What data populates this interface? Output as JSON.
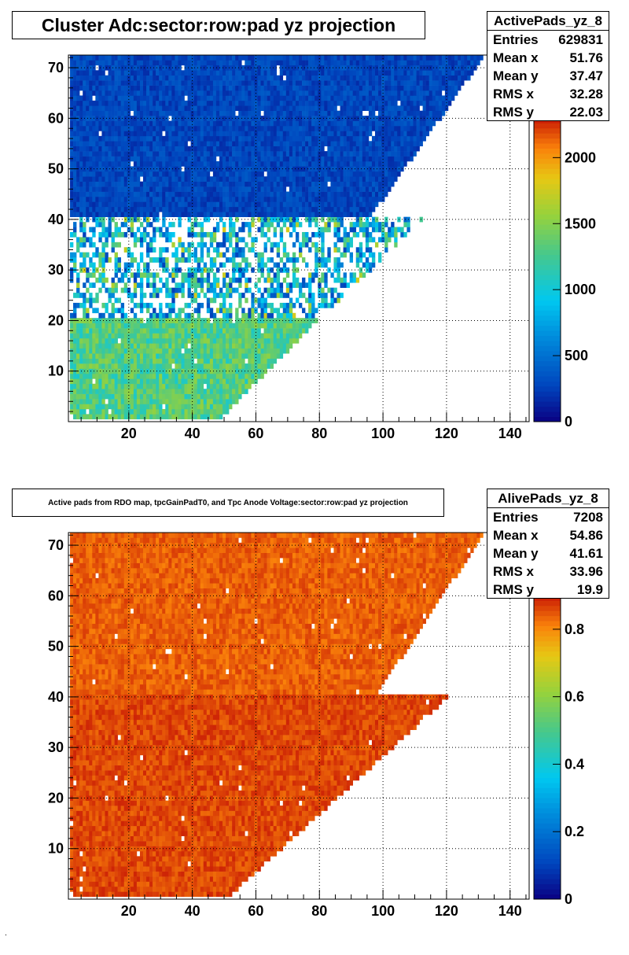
{
  "chart_data": [
    {
      "type": "heatmap",
      "title": "Cluster Adc:sector:row:pad yz projection",
      "xlabel": "",
      "ylabel": "",
      "xlim": [
        1,
        146
      ],
      "ylim": [
        0,
        72.5
      ],
      "x_ticks": [
        "20",
        "40",
        "60",
        "80",
        "100",
        "120",
        "140"
      ],
      "y_ticks": [
        "10",
        "20",
        "30",
        "40",
        "50",
        "60",
        "70"
      ],
      "colorbar": {
        "min": 0,
        "max": 2300,
        "ticks": [
          "0",
          "500",
          "1000",
          "1500",
          "2000"
        ]
      },
      "grid": true,
      "stats": {
        "name": "ActivePads_yz_8",
        "rows": [
          {
            "label": "Entries",
            "value": "629831"
          },
          {
            "label": "Mean x",
            "value": "51.76"
          },
          {
            "label": "Mean y",
            "value": "37.47"
          },
          {
            "label": "RMS x",
            "value": "32.28"
          },
          {
            "label": "RMS y",
            "value": "22.03"
          }
        ]
      },
      "regions": [
        {
          "rows": [
            41,
            72
          ],
          "pad_max_at_row40": 95,
          "pad_max_at_row72": 131,
          "value_mean": 280,
          "value_spread": 110
        },
        {
          "rows": [
            21,
            40
          ],
          "pad_max_at_row21": 81,
          "pad_max_at_row40": 112,
          "value_mean": 850,
          "value_spread": 600,
          "sparse": true
        },
        {
          "rows": [
            1,
            20
          ],
          "pad_max_at_row1": 49,
          "pad_max_at_row20": 79,
          "value_mean": 1300,
          "value_spread": 250
        }
      ]
    },
    {
      "type": "heatmap",
      "title": "Active pads from RDO map, tpcGainPadT0,  and Tpc Anode Voltage:sector:row:pad yz projection",
      "xlabel": "",
      "ylabel": "",
      "xlim": [
        1,
        146
      ],
      "ylim": [
        0,
        72.5
      ],
      "x_ticks": [
        "20",
        "40",
        "60",
        "80",
        "100",
        "120",
        "140"
      ],
      "y_ticks": [
        "10",
        "20",
        "30",
        "40",
        "50",
        "60",
        "70"
      ],
      "colorbar": {
        "min": 0,
        "max": 0.9,
        "ticks": [
          "0",
          "0.2",
          "0.4",
          "0.6",
          "0.8"
        ]
      },
      "grid": true,
      "stats": {
        "name": "AlivePads_yz_8",
        "rows": [
          {
            "label": "Entries",
            "value": "7208"
          },
          {
            "label": "Mean x",
            "value": "54.86"
          },
          {
            "label": "Mean y",
            "value": "41.61"
          },
          {
            "label": "RMS x",
            "value": "33.96"
          },
          {
            "label": "RMS y",
            "value": "19.9"
          }
        ]
      },
      "regions": [
        {
          "rows": [
            41,
            72
          ],
          "pad_max_at_row40": 97,
          "pad_max_at_row72": 131,
          "value_mean": 0.84,
          "value_spread": 0.03
        },
        {
          "rows": [
            1,
            40
          ],
          "pad_max_at_row1": 52,
          "pad_max_at_row40": 120,
          "value_mean": 0.86,
          "value_spread": 0.03
        }
      ]
    }
  ]
}
